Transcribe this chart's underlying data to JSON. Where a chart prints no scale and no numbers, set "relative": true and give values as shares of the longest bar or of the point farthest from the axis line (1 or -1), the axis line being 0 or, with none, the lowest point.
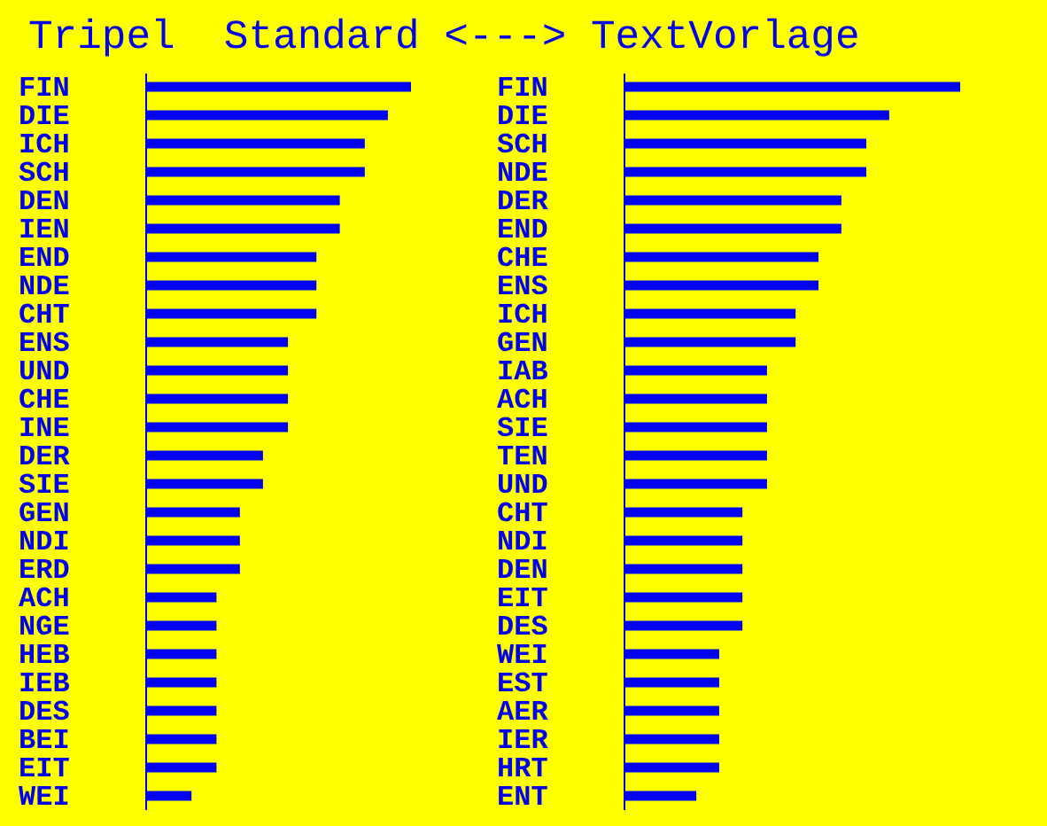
{
  "chart_data": [
    {
      "type": "bar",
      "orientation": "horizontal",
      "relative": true,
      "title": "Tripel  Standard <---> TextVorlage",
      "categories": [
        "FIN",
        "DIE",
        "ICH",
        "SCH",
        "DEN",
        "IEN",
        "END",
        "NDE",
        "CHT",
        "ENS",
        "UND",
        "CHE",
        "INE",
        "DER",
        "SIE",
        "GEN",
        "NDI",
        "ERD",
        "ACH",
        "NGE",
        "HEB",
        "IEB",
        "DES",
        "BEI",
        "EIT",
        "WEI"
      ],
      "series": [
        {
          "color": "#0000ee",
          "values": [
            1,
            0.913,
            0.826,
            0.826,
            0.732,
            0.732,
            0.644,
            0.644,
            0.644,
            0.537,
            0.537,
            0.537,
            0.537,
            0.443,
            0.443,
            0.356,
            0.356,
            0.356,
            0.268,
            0.268,
            0.268,
            0.268,
            0.268,
            0.268,
            0.268,
            0.174
          ]
        }
      ]
    },
    {
      "type": "bar",
      "orientation": "horizontal",
      "relative": true,
      "categories": [
        "FIN",
        "DIE",
        "SCH",
        "NDE",
        "DER",
        "END",
        "CHE",
        "ENS",
        "ICH",
        "GEN",
        "IAB",
        "ACH",
        "SIE",
        "TEN",
        "UND",
        "CHT",
        "NDI",
        "DEN",
        "EIT",
        "DES",
        "WEI",
        "EST",
        "AER",
        "IER",
        "HRT",
        "ENT"
      ],
      "series": [
        {
          "color": "#0000ee",
          "values": [
            1,
            0.789,
            0.721,
            0.721,
            0.647,
            0.647,
            0.579,
            0.579,
            0.511,
            0.511,
            0.426,
            0.426,
            0.426,
            0.426,
            0.426,
            0.353,
            0.353,
            0.353,
            0.353,
            0.353,
            0.284,
            0.284,
            0.284,
            0.284,
            0.284,
            0.216
          ]
        }
      ]
    }
  ]
}
